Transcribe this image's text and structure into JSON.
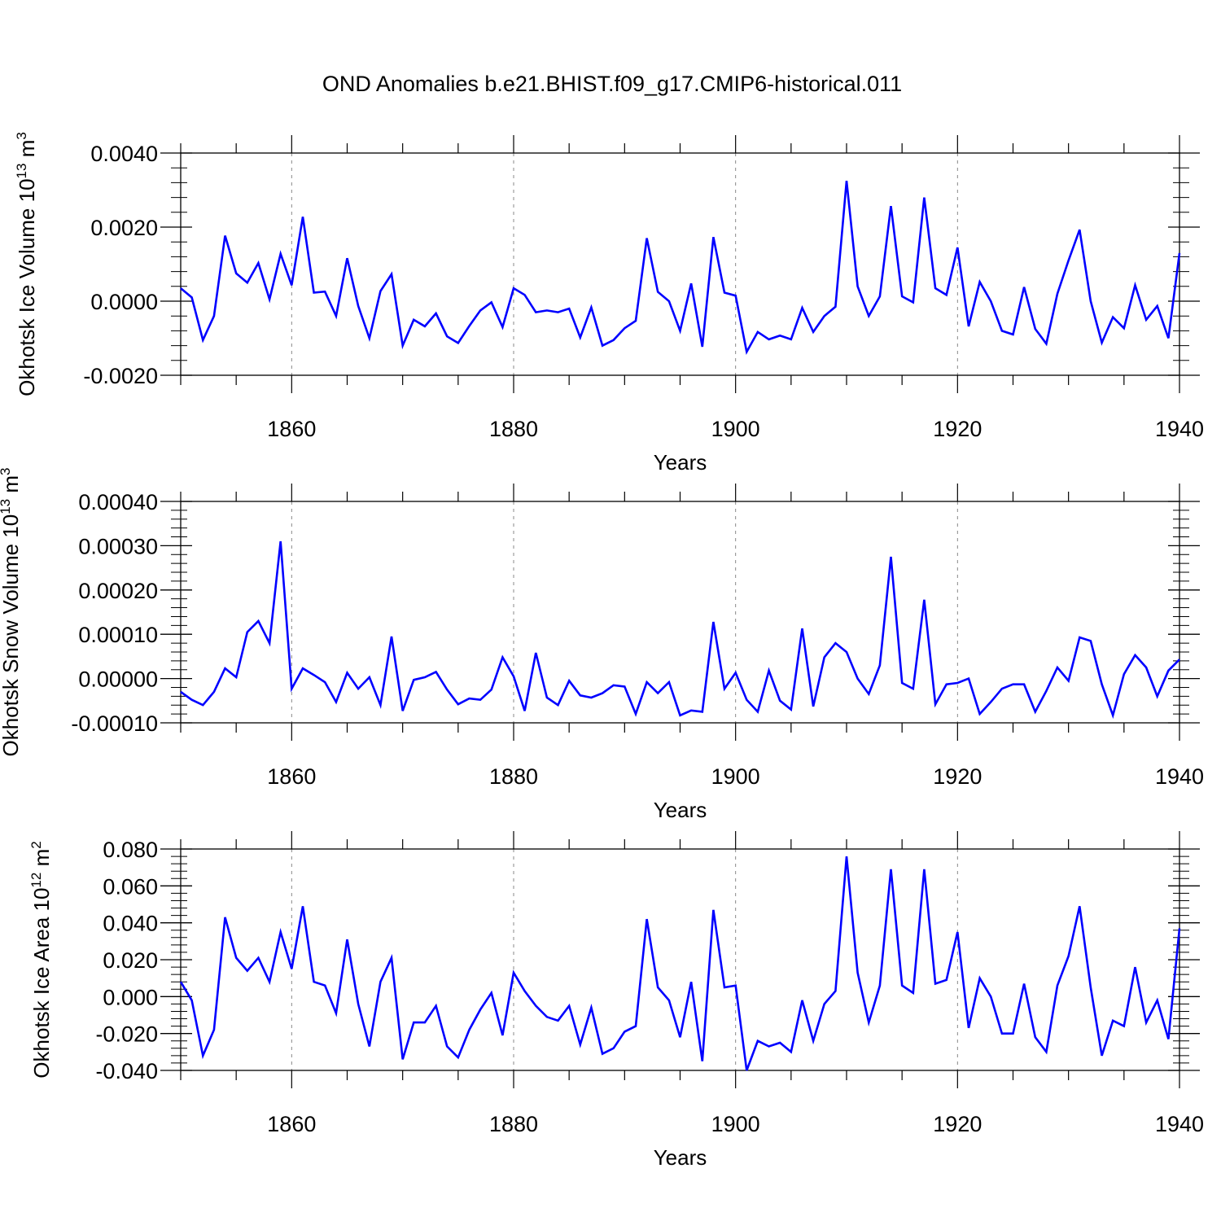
{
  "title": "OND Anomalies b.e21.BHIST.f09_g17.CMIP6-historical.011",
  "chart_data": [
    {
      "type": "line",
      "ylabel_main": "Okhotsk Ice Volume 10",
      "ylabel_exp": "13",
      "ylabel_unit": " m",
      "ylabel_unit_exp": "3",
      "xlabel": "Years",
      "xlim": [
        1850,
        1940
      ],
      "ylim": [
        -0.002,
        0.004
      ],
      "xticks": [
        1860,
        1880,
        1900,
        1920,
        1940
      ],
      "xtick_labels": [
        "1860",
        "1880",
        "1900",
        "1920",
        "1940"
      ],
      "yticks": [
        -0.002,
        0.0,
        0.002,
        0.004
      ],
      "ytick_labels": [
        "-0.0020",
        "0.0000",
        "0.0020",
        "0.0040"
      ],
      "line_color": "#0000ff",
      "x": [
        1850,
        1851,
        1852,
        1853,
        1854,
        1855,
        1856,
        1857,
        1858,
        1859,
        1860,
        1861,
        1862,
        1863,
        1864,
        1865,
        1866,
        1867,
        1868,
        1869,
        1870,
        1871,
        1872,
        1873,
        1874,
        1875,
        1876,
        1877,
        1878,
        1879,
        1880,
        1881,
        1882,
        1883,
        1884,
        1885,
        1886,
        1887,
        1888,
        1889,
        1890,
        1891,
        1892,
        1893,
        1894,
        1895,
        1896,
        1897,
        1898,
        1899,
        1900,
        1901,
        1902,
        1903,
        1904,
        1905,
        1906,
        1907,
        1908,
        1909,
        1910,
        1911,
        1912,
        1913,
        1914,
        1915,
        1916,
        1917,
        1918,
        1919,
        1920,
        1921,
        1922,
        1923,
        1924,
        1925,
        1926,
        1927,
        1928,
        1929,
        1930,
        1931,
        1932,
        1933,
        1934,
        1935,
        1936,
        1937,
        1938,
        1939,
        1940
      ],
      "values": [
        0.00035,
        0.0001,
        -0.00105,
        -0.0004,
        0.00177,
        0.00075,
        0.0005,
        0.00103,
        5e-05,
        0.00128,
        0.00043,
        0.00228,
        0.00023,
        0.00026,
        -0.0004,
        0.00116,
        -0.00013,
        -0.001,
        0.00027,
        0.00073,
        -0.0012,
        -0.0005,
        -0.00068,
        -0.00033,
        -0.00095,
        -0.00113,
        -0.00067,
        -0.00025,
        -3e-05,
        -0.0007,
        0.00035,
        0.00017,
        -0.0003,
        -0.00025,
        -0.0003,
        -0.0002,
        -0.00098,
        -0.00017,
        -0.0012,
        -0.00105,
        -0.00073,
        -0.00053,
        0.0017,
        0.00025,
        0.0,
        -0.0008,
        0.00048,
        -0.00123,
        0.00173,
        0.00023,
        0.00015,
        -0.00137,
        -0.00083,
        -0.00103,
        -0.00093,
        -0.00103,
        -0.00018,
        -0.00083,
        -0.0004,
        -0.00015,
        0.00325,
        0.0004,
        -0.0004,
        0.00013,
        0.00257,
        0.00013,
        -3e-05,
        0.0028,
        0.00035,
        0.00017,
        0.00145,
        -0.00068,
        0.00052,
        0.0,
        -0.0008,
        -0.0009,
        0.00038,
        -0.00075,
        -0.00115,
        0.0002,
        0.0011,
        0.00193,
        0.0,
        -0.00112,
        -0.00043,
        -0.00073,
        0.00043,
        -0.0005,
        -0.00013,
        -0.001,
        0.0013
      ]
    },
    {
      "type": "line",
      "ylabel_main": "Okhotsk Snow Volume 10",
      "ylabel_exp": "13",
      "ylabel_unit": " m",
      "ylabel_unit_exp": "3",
      "xlabel": "Years",
      "xlim": [
        1850,
        1940
      ],
      "ylim": [
        -0.0001,
        0.0004
      ],
      "xticks": [
        1860,
        1880,
        1900,
        1920,
        1940
      ],
      "xtick_labels": [
        "1860",
        "1880",
        "1900",
        "1920",
        "1940"
      ],
      "yticks": [
        -0.0001,
        0.0,
        0.0001,
        0.0002,
        0.0003,
        0.0004
      ],
      "ytick_labels": [
        "-0.00010",
        "0.00000",
        "0.00010",
        "0.00020",
        "0.00030",
        "0.00040"
      ],
      "line_color": "#0000ff",
      "x": [
        1850,
        1851,
        1852,
        1853,
        1854,
        1855,
        1856,
        1857,
        1858,
        1859,
        1860,
        1861,
        1862,
        1863,
        1864,
        1865,
        1866,
        1867,
        1868,
        1869,
        1870,
        1871,
        1872,
        1873,
        1874,
        1875,
        1876,
        1877,
        1878,
        1879,
        1880,
        1881,
        1882,
        1883,
        1884,
        1885,
        1886,
        1887,
        1888,
        1889,
        1890,
        1891,
        1892,
        1893,
        1894,
        1895,
        1896,
        1897,
        1898,
        1899,
        1900,
        1901,
        1902,
        1903,
        1904,
        1905,
        1906,
        1907,
        1908,
        1909,
        1910,
        1911,
        1912,
        1913,
        1914,
        1915,
        1916,
        1917,
        1918,
        1919,
        1920,
        1921,
        1922,
        1923,
        1924,
        1925,
        1926,
        1927,
        1928,
        1929,
        1930,
        1931,
        1932,
        1933,
        1934,
        1935,
        1936,
        1937,
        1938,
        1939,
        1940
      ],
      "values": [
        -3e-05,
        -4.8e-05,
        -6e-05,
        -3e-05,
        2.3e-05,
        3e-06,
        0.000105,
        0.00013,
        8e-05,
        0.00031,
        -2.3e-05,
        2.3e-05,
        8e-06,
        -8e-06,
        -5.3e-05,
        1.3e-05,
        -2.3e-05,
        3e-06,
        -6e-05,
        9.5e-05,
        -7.3e-05,
        -3e-06,
        3e-06,
        1.5e-05,
        -2.5e-05,
        -5.8e-05,
        -4.5e-05,
        -4.8e-05,
        -2.5e-05,
        4.8e-05,
        5e-06,
        -7.3e-05,
        5.8e-05,
        -4.3e-05,
        -6e-05,
        -5e-06,
        -3.8e-05,
        -4.3e-05,
        -3.3e-05,
        -1.5e-05,
        -1.8e-05,
        -8e-05,
        -8e-06,
        -3.3e-05,
        -8e-06,
        -8.3e-05,
        -7.2e-05,
        -7.5e-05,
        0.000128,
        -2.3e-05,
        1.3e-05,
        -4.8e-05,
        -7.5e-05,
        1.8e-05,
        -5e-05,
        -7e-05,
        0.000113,
        -6.3e-05,
        4.8e-05,
        8e-05,
        6e-05,
        0.0,
        -3.5e-05,
        3e-05,
        0.000275,
        -1e-05,
        -2.3e-05,
        0.000178,
        -5.8e-05,
        -1.3e-05,
        -1e-05,
        0.0,
        -8e-05,
        -5.3e-05,
        -2.3e-05,
        -1.3e-05,
        -1.3e-05,
        -7.5e-05,
        -2.8e-05,
        2.5e-05,
        -5e-06,
        9.3e-05,
        8.5e-05,
        -1.3e-05,
        -8.3e-05,
        1e-05,
        5.3e-05,
        2.5e-05,
        -4e-05,
        1.8e-05,
        4.3e-05
      ]
    },
    {
      "type": "line",
      "ylabel_main": "Okhotsk Ice Area 10",
      "ylabel_exp": "12",
      "ylabel_unit": " m",
      "ylabel_unit_exp": "2",
      "xlabel": "Years",
      "xlim": [
        1850,
        1940
      ],
      "ylim": [
        -0.04,
        0.08
      ],
      "xticks": [
        1860,
        1880,
        1900,
        1920,
        1940
      ],
      "xtick_labels": [
        "1860",
        "1880",
        "1900",
        "1920",
        "1940"
      ],
      "yticks": [
        -0.04,
        -0.02,
        0.0,
        0.02,
        0.04,
        0.06,
        0.08
      ],
      "ytick_labels": [
        "-0.040",
        "-0.020",
        "0.000",
        "0.020",
        "0.040",
        "0.060",
        "0.080"
      ],
      "line_color": "#0000ff",
      "x": [
        1850,
        1851,
        1852,
        1853,
        1854,
        1855,
        1856,
        1857,
        1858,
        1859,
        1860,
        1861,
        1862,
        1863,
        1864,
        1865,
        1866,
        1867,
        1868,
        1869,
        1870,
        1871,
        1872,
        1873,
        1874,
        1875,
        1876,
        1877,
        1878,
        1879,
        1880,
        1881,
        1882,
        1883,
        1884,
        1885,
        1886,
        1887,
        1888,
        1889,
        1890,
        1891,
        1892,
        1893,
        1894,
        1895,
        1896,
        1897,
        1898,
        1899,
        1900,
        1901,
        1902,
        1903,
        1904,
        1905,
        1906,
        1907,
        1908,
        1909,
        1910,
        1911,
        1912,
        1913,
        1914,
        1915,
        1916,
        1917,
        1918,
        1919,
        1920,
        1921,
        1922,
        1923,
        1924,
        1925,
        1926,
        1927,
        1928,
        1929,
        1930,
        1931,
        1932,
        1933,
        1934,
        1935,
        1936,
        1937,
        1938,
        1939,
        1940
      ],
      "values": [
        0.008,
        -0.002,
        -0.032,
        -0.018,
        0.043,
        0.021,
        0.014,
        0.021,
        0.008,
        0.035,
        0.015,
        0.049,
        0.008,
        0.006,
        -0.009,
        0.031,
        -0.004,
        -0.027,
        0.008,
        0.021,
        -0.034,
        -0.014,
        -0.014,
        -0.005,
        -0.027,
        -0.033,
        -0.018,
        -0.007,
        0.002,
        -0.021,
        0.013,
        0.003,
        -0.005,
        -0.011,
        -0.013,
        -0.005,
        -0.026,
        -0.006,
        -0.031,
        -0.028,
        -0.019,
        -0.016,
        0.042,
        0.005,
        -0.002,
        -0.022,
        0.008,
        -0.035,
        0.047,
        0.005,
        0.006,
        -0.04,
        -0.024,
        -0.027,
        -0.025,
        -0.03,
        -0.002,
        -0.024,
        -0.004,
        0.003,
        0.076,
        0.013,
        -0.014,
        0.006,
        0.069,
        0.006,
        0.002,
        0.069,
        0.007,
        0.009,
        0.035,
        -0.017,
        0.01,
        0.0,
        -0.02,
        -0.02,
        0.007,
        -0.022,
        -0.03,
        0.006,
        0.022,
        0.049,
        0.005,
        -0.032,
        -0.013,
        -0.016,
        0.016,
        -0.014,
        -0.002,
        -0.023,
        0.037
      ]
    }
  ]
}
